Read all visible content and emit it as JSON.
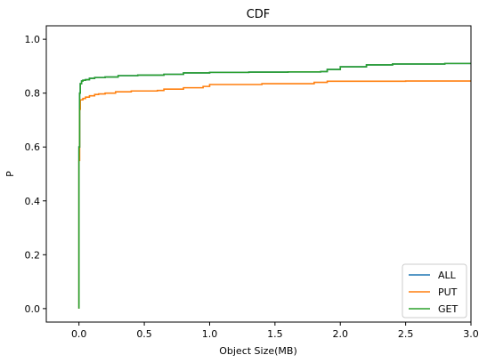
{
  "chart_data": {
    "type": "line",
    "title": "CDF",
    "xlabel": "Object Size(MB)",
    "ylabel": "P",
    "xlim": [
      -0.25,
      3.0
    ],
    "ylim": [
      -0.05,
      1.05
    ],
    "xticks": [
      0.0,
      0.5,
      1.0,
      1.5,
      2.0,
      2.5,
      3.0
    ],
    "xtick_labels": [
      "0.0",
      "0.5",
      "1.0",
      "1.5",
      "2.0",
      "2.5",
      "3.0"
    ],
    "yticks": [
      0.0,
      0.2,
      0.4,
      0.6,
      0.8,
      1.0
    ],
    "ytick_labels": [
      "0.0",
      "0.2",
      "0.4",
      "0.6",
      "0.8",
      "1.0"
    ],
    "grid": false,
    "legend_position": "bottom-right",
    "series": [
      {
        "name": "ALL",
        "color": "#1f77b4",
        "step": true,
        "x": [
          0.0,
          0.0,
          0.005,
          0.01,
          0.02,
          0.03,
          0.05,
          0.08,
          0.12,
          0.2,
          0.3,
          0.45,
          0.65,
          0.8,
          1.0,
          1.3,
          1.6,
          1.85,
          1.9,
          2.0,
          2.2,
          2.4,
          2.8,
          3.0
        ],
        "y": [
          0.0,
          0.6,
          0.8,
          0.835,
          0.845,
          0.848,
          0.85,
          0.855,
          0.858,
          0.86,
          0.865,
          0.867,
          0.87,
          0.875,
          0.877,
          0.878,
          0.879,
          0.88,
          0.888,
          0.898,
          0.905,
          0.908,
          0.91,
          0.911
        ]
      },
      {
        "name": "PUT",
        "color": "#ff7f0e",
        "step": true,
        "x": [
          0.0,
          0.0,
          0.005,
          0.01,
          0.03,
          0.05,
          0.08,
          0.12,
          0.15,
          0.2,
          0.28,
          0.4,
          0.6,
          0.65,
          0.8,
          0.95,
          1.0,
          1.4,
          1.8,
          1.9,
          2.5,
          3.0
        ],
        "y": [
          0.0,
          0.55,
          0.74,
          0.775,
          0.78,
          0.785,
          0.79,
          0.795,
          0.797,
          0.8,
          0.805,
          0.808,
          0.81,
          0.815,
          0.82,
          0.825,
          0.832,
          0.835,
          0.84,
          0.844,
          0.845,
          0.846
        ]
      },
      {
        "name": "GET",
        "color": "#2ca02c",
        "step": true,
        "x": [
          0.0,
          0.0,
          0.005,
          0.01,
          0.02,
          0.03,
          0.05,
          0.08,
          0.12,
          0.2,
          0.3,
          0.45,
          0.65,
          0.8,
          1.0,
          1.3,
          1.6,
          1.85,
          1.9,
          2.0,
          2.2,
          2.4,
          2.8,
          3.0
        ],
        "y": [
          0.0,
          0.6,
          0.8,
          0.835,
          0.845,
          0.848,
          0.85,
          0.855,
          0.858,
          0.86,
          0.865,
          0.867,
          0.87,
          0.875,
          0.877,
          0.878,
          0.879,
          0.88,
          0.888,
          0.898,
          0.905,
          0.908,
          0.91,
          0.911
        ]
      }
    ]
  }
}
